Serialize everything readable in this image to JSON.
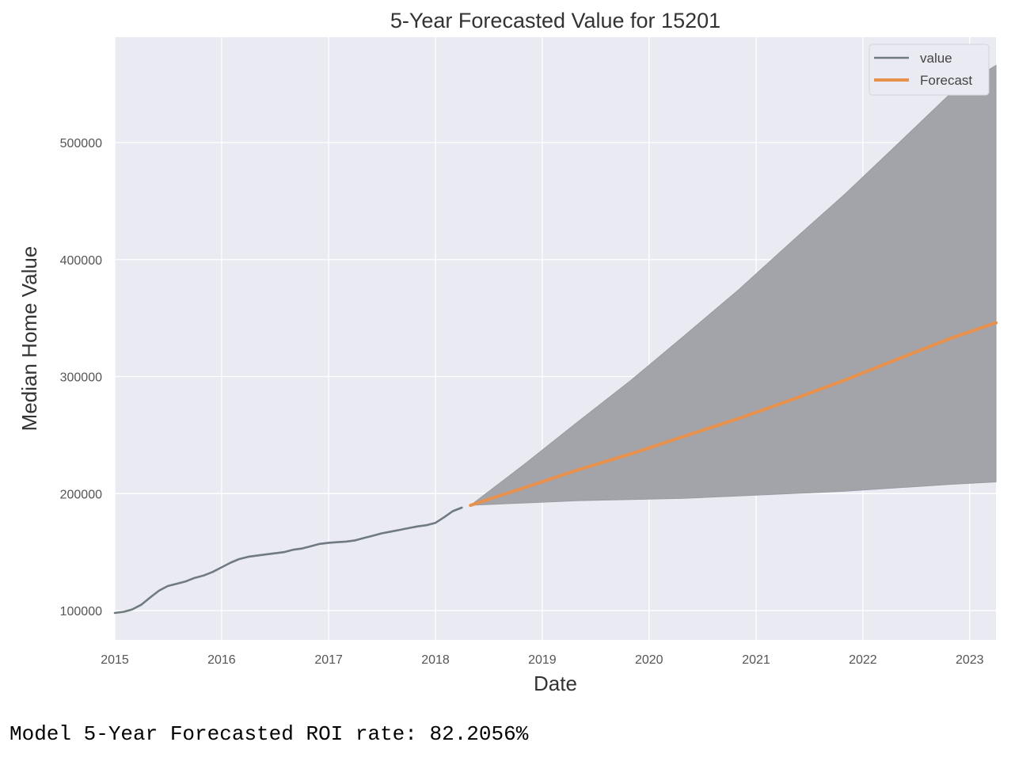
{
  "output_text": "Model 5-Year Forecasted ROI rate: 82.2056%",
  "chart_data": {
    "type": "line",
    "title": "5-Year Forecasted Value for 15201",
    "xlabel": "Date",
    "ylabel": "Median Home Value",
    "xlim": [
      "2015-01-01",
      "2023-04-01"
    ],
    "ylim": [
      75000,
      590000
    ],
    "x_ticks": [
      "2015",
      "2016",
      "2017",
      "2018",
      "2019",
      "2020",
      "2021",
      "2022",
      "2023"
    ],
    "y_ticks": [
      100000,
      200000,
      300000,
      400000,
      500000
    ],
    "y_tick_labels": [
      "100000",
      "200000",
      "300000",
      "400000",
      "500000"
    ],
    "grid": true,
    "legend_position": "top-right",
    "colors": {
      "background": "#eaeaf2",
      "grid": "#ffffff",
      "value": "#6f7b80",
      "forecast": "#e8914d",
      "confidence_band": "#a3a3aa"
    },
    "series": [
      {
        "name": "value",
        "x": [
          "2015-01-01",
          "2015-02-01",
          "2015-03-01",
          "2015-04-01",
          "2015-05-01",
          "2015-06-01",
          "2015-07-01",
          "2015-08-01",
          "2015-09-01",
          "2015-10-01",
          "2015-11-01",
          "2015-12-01",
          "2016-01-01",
          "2016-02-01",
          "2016-03-01",
          "2016-04-01",
          "2016-05-01",
          "2016-06-01",
          "2016-07-01",
          "2016-08-01",
          "2016-09-01",
          "2016-10-01",
          "2016-11-01",
          "2016-12-01",
          "2017-01-01",
          "2017-02-01",
          "2017-03-01",
          "2017-04-01",
          "2017-05-01",
          "2017-06-01",
          "2017-07-01",
          "2017-08-01",
          "2017-09-01",
          "2017-10-01",
          "2017-11-01",
          "2017-12-01",
          "2018-01-01",
          "2018-02-01",
          "2018-03-01",
          "2018-04-01"
        ],
        "y": [
          98000,
          99000,
          101000,
          105000,
          111000,
          117000,
          121000,
          123000,
          125000,
          128000,
          130000,
          133000,
          137000,
          141000,
          144000,
          146000,
          147000,
          148000,
          149000,
          150000,
          152000,
          153000,
          155000,
          157000,
          158000,
          158500,
          159000,
          160000,
          162000,
          164000,
          166000,
          167500,
          169000,
          170500,
          172000,
          173000,
          175000,
          180000,
          185000,
          188000
        ]
      },
      {
        "name": "Forecast",
        "x": [
          "2018-05-01",
          "2018-11-01",
          "2019-05-01",
          "2019-11-01",
          "2020-05-01",
          "2020-11-01",
          "2021-05-01",
          "2021-11-01",
          "2022-05-01",
          "2022-11-01",
          "2023-04-01"
        ],
        "y": [
          190000,
          205000,
          220000,
          234000,
          249000,
          264000,
          280000,
          297000,
          315000,
          333000,
          346000
        ],
        "upper": [
          190000,
          225000,
          261000,
          297000,
          335000,
          374000,
          415000,
          456000,
          499000,
          543000,
          566000
        ],
        "lower": [
          190000,
          192000,
          194000,
          195000,
          196000,
          198000,
          200000,
          202000,
          205000,
          208000,
          210000
        ]
      }
    ]
  }
}
